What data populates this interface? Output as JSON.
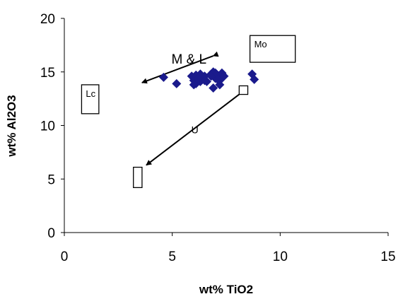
{
  "chart_data": {
    "type": "scatter",
    "xlabel": "wt% TiO2",
    "ylabel": "wt% Al2O3",
    "xlim": [
      0,
      15
    ],
    "ylim": [
      0,
      20
    ],
    "xticks": [
      "0",
      "5",
      "10",
      "15"
    ],
    "yticks": [
      "0",
      "5",
      "10",
      "15",
      "20"
    ],
    "grid": false,
    "legend": "none",
    "marker_color": "#1a1a8c",
    "series": [
      {
        "x": [
          4.6,
          5.2,
          5.9,
          6.0,
          6.1,
          6.2,
          6.3,
          6.4,
          6.5,
          6.6,
          6.8,
          6.9,
          7.0,
          7.1,
          7.2,
          7.3,
          7.4,
          6.0,
          6.1,
          6.3,
          6.5,
          6.9,
          7.0,
          7.2,
          6.2,
          6.8,
          7.1,
          8.7,
          8.8
        ],
        "y": [
          14.5,
          13.9,
          14.6,
          14.2,
          13.9,
          14.5,
          14.8,
          14.3,
          14.6,
          14.1,
          14.8,
          15.0,
          14.4,
          14.7,
          14.2,
          14.9,
          14.6,
          13.8,
          14.7,
          14.1,
          14.2,
          13.5,
          14.9,
          13.8,
          14.4,
          14.6,
          14.3,
          14.8,
          14.3
        ]
      }
    ],
    "regions": [
      {
        "label": "Lc",
        "x": [
          0.8,
          1.6
        ],
        "y": [
          11.1,
          13.8
        ]
      },
      {
        "label": "Mo",
        "x": [
          8.6,
          10.7
        ],
        "y": [
          15.9,
          18.4
        ]
      },
      {
        "label": "",
        "x": [
          3.2,
          3.6
        ],
        "y": [
          4.2,
          6.1
        ]
      },
      {
        "label": "",
        "x": [
          8.1,
          8.5
        ],
        "y": [
          12.9,
          13.7
        ]
      }
    ],
    "arrows": [
      {
        "label": "M & L",
        "from": [
          6.9,
          16.5
        ],
        "to": [
          3.6,
          14.0
        ],
        "double": true
      },
      {
        "label": "U",
        "from": [
          8.1,
          12.9
        ],
        "to": [
          3.8,
          6.3
        ],
        "double": false
      }
    ]
  }
}
